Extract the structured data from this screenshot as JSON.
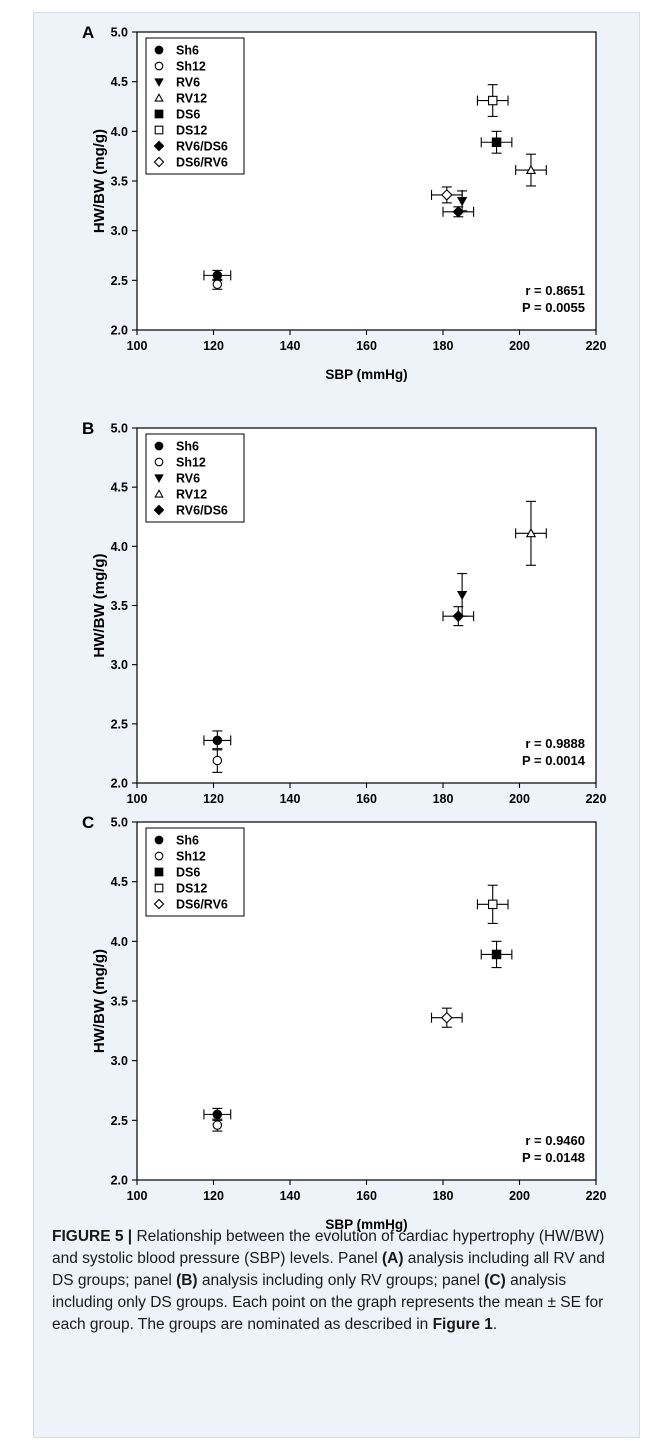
{
  "chart_data": [
    {
      "panel": "A",
      "type": "scatter",
      "xlabel": "SBP (mmHg)",
      "ylabel": "HW/BW (mg/g)",
      "xlim": [
        100,
        220
      ],
      "ylim": [
        2.0,
        5.0
      ],
      "xticks": [
        100,
        120,
        140,
        160,
        180,
        200,
        220
      ],
      "yticks": [
        2.0,
        2.5,
        3.0,
        3.5,
        4.0,
        4.5,
        5.0
      ],
      "legend_position": "top-left",
      "series": [
        {
          "name": "Sh6",
          "marker": "circle-filled",
          "x": 121,
          "y": 2.55,
          "xerr": 3.5,
          "yerr": 0.05
        },
        {
          "name": "Sh12",
          "marker": "circle-open",
          "x": 121,
          "y": 2.46,
          "xerr": 0,
          "yerr": 0.05
        },
        {
          "name": "RV6",
          "marker": "triangle-down-filled",
          "x": 185,
          "y": 3.3,
          "xerr": 0,
          "yerr": 0.1
        },
        {
          "name": "RV12",
          "marker": "triangle-up-open",
          "x": 203,
          "y": 3.61,
          "xerr": 4,
          "yerr": 0.16
        },
        {
          "name": "DS6",
          "marker": "square-filled",
          "x": 194,
          "y": 3.89,
          "xerr": 4,
          "yerr": 0.11
        },
        {
          "name": "DS12",
          "marker": "square-open",
          "x": 193,
          "y": 4.31,
          "xerr": 4,
          "yerr": 0.16
        },
        {
          "name": "RV6/DS6",
          "marker": "diamond-filled",
          "x": 184,
          "y": 3.19,
          "xerr": 4,
          "yerr": 0.05
        },
        {
          "name": "DS6/RV6",
          "marker": "diamond-open",
          "x": 181,
          "y": 3.36,
          "xerr": 4,
          "yerr": 0.08
        }
      ],
      "stats": [
        "r = 0.8651",
        "P = 0.0055"
      ]
    },
    {
      "panel": "B",
      "type": "scatter",
      "xlabel": "SBP (mmHg)",
      "ylabel": "HW/BW (mg/g)",
      "xlim": [
        100,
        220
      ],
      "ylim": [
        2.0,
        5.0
      ],
      "xticks": [
        100,
        120,
        140,
        160,
        180,
        200,
        220
      ],
      "yticks": [
        2.0,
        2.5,
        3.0,
        3.5,
        4.0,
        4.5,
        5.0
      ],
      "legend_position": "top-left",
      "series": [
        {
          "name": "Sh6",
          "marker": "circle-filled",
          "x": 121,
          "y": 2.36,
          "xerr": 3.5,
          "yerr": 0.08
        },
        {
          "name": "Sh12",
          "marker": "circle-open",
          "x": 121,
          "y": 2.19,
          "xerr": 0,
          "yerr": 0.1
        },
        {
          "name": "RV6",
          "marker": "triangle-down-filled",
          "x": 185,
          "y": 3.59,
          "xerr": 0,
          "yerr": 0.18
        },
        {
          "name": "RV12",
          "marker": "triangle-up-open",
          "x": 203,
          "y": 4.11,
          "xerr": 4,
          "yerr": 0.27
        },
        {
          "name": "RV6/DS6",
          "marker": "diamond-filled",
          "x": 184,
          "y": 3.41,
          "xerr": 4,
          "yerr": 0.08
        }
      ],
      "stats": [
        "r = 0.9888",
        "P = 0.0014"
      ]
    },
    {
      "panel": "C",
      "type": "scatter",
      "xlabel": "SBP (mmHg)",
      "ylabel": "HW/BW (mg/g)",
      "xlim": [
        100,
        220
      ],
      "ylim": [
        2.0,
        5.0
      ],
      "xticks": [
        100,
        120,
        140,
        160,
        180,
        200,
        220
      ],
      "yticks": [
        2.0,
        2.5,
        3.0,
        3.5,
        4.0,
        4.5,
        5.0
      ],
      "legend_position": "top-left",
      "series": [
        {
          "name": "Sh6",
          "marker": "circle-filled",
          "x": 121,
          "y": 2.55,
          "xerr": 3.5,
          "yerr": 0.05
        },
        {
          "name": "Sh12",
          "marker": "circle-open",
          "x": 121,
          "y": 2.46,
          "xerr": 0,
          "yerr": 0.05
        },
        {
          "name": "DS6",
          "marker": "square-filled",
          "x": 194,
          "y": 3.89,
          "xerr": 4,
          "yerr": 0.11
        },
        {
          "name": "DS12",
          "marker": "square-open",
          "x": 193,
          "y": 4.31,
          "xerr": 4,
          "yerr": 0.16
        },
        {
          "name": "DS6/RV6",
          "marker": "diamond-open",
          "x": 181,
          "y": 3.36,
          "xerr": 4,
          "yerr": 0.08
        }
      ],
      "stats": [
        "r = 0.9460",
        "P = 0.0148"
      ]
    }
  ],
  "caption": {
    "figure_label": "FIGURE 5 |",
    "part1": " Relationship between the evolution of cardiac hypertrophy (HW/BW) and systolic blood pressure (SBP) levels. Panel ",
    "ref_a": "(A)",
    "part2": " analysis including all RV and DS groups; panel ",
    "ref_b": "(B)",
    "part3": " analysis including only RV groups; panel ",
    "ref_c": "(C)",
    "part4": " analysis including only DS groups. Each point on the graph represents the mean ± SE for each group. The groups are nominated as described in ",
    "fig_ref": "Figure 1",
    "part5": "."
  },
  "colors": {
    "frame_bg": "#eef2f9",
    "ink": "#000000"
  }
}
